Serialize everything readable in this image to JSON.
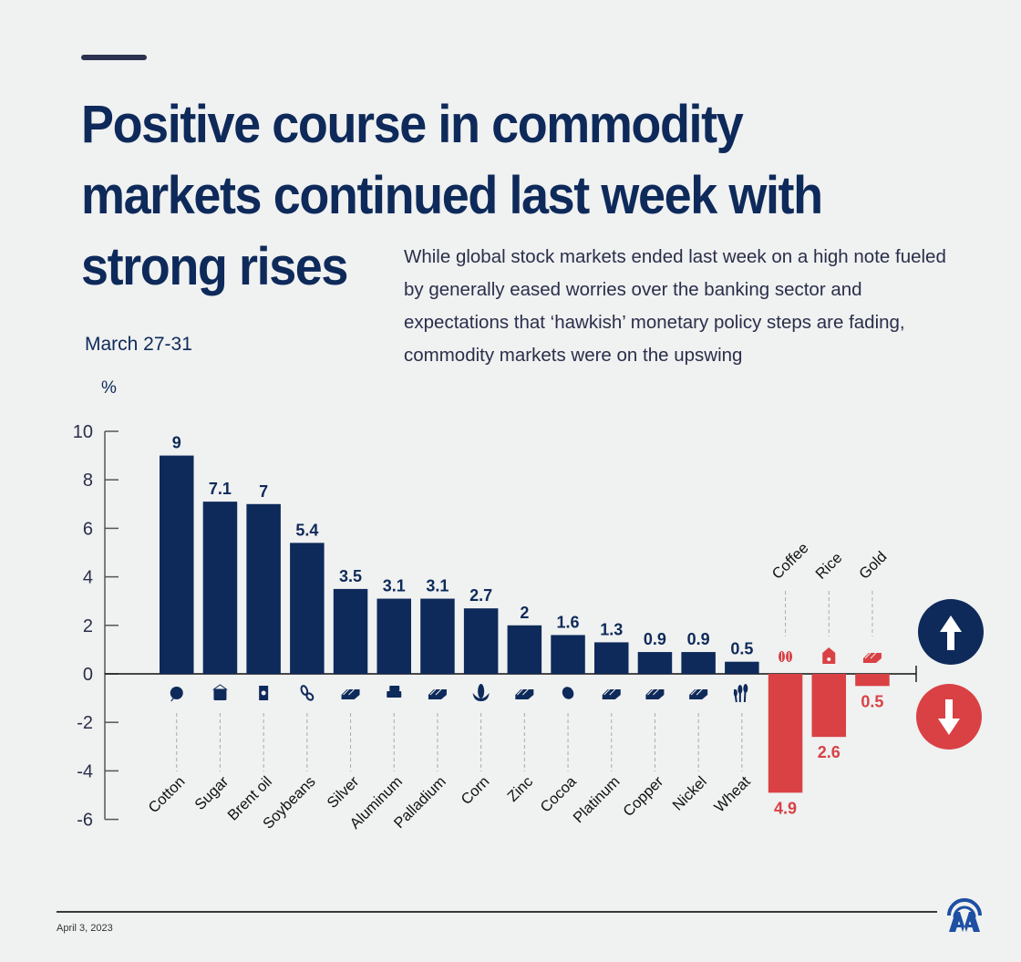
{
  "header": {
    "title_lines": [
      "Positive course in commodity",
      "markets continued last week with",
      "strong rises"
    ],
    "description": "While global stock markets ended last week on a high note fueled by generally eased worries over the banking sector and expectations that ‘hawkish’ monetary policy steps are fading, commodity markets were on the upswing",
    "period": "March 27-31"
  },
  "footer": {
    "date": "April 3, 2023",
    "logo": "aa-logo-icon"
  },
  "colors": {
    "positive": "#0e2a5a",
    "negative": "#d94145",
    "background": "#f0f1f1"
  },
  "legend": {
    "up": "arrow-up-icon",
    "down": "arrow-down-icon"
  },
  "chart_data": {
    "type": "bar",
    "title": "Positive course in commodity markets continued last week with strong rises",
    "subtitle": "March 27-31",
    "xlabel": "",
    "ylabel": "%",
    "ylim": [
      -6,
      10
    ],
    "yticks": [
      10,
      8,
      6,
      4,
      2,
      0,
      -2,
      -4,
      -6
    ],
    "grid": false,
    "categories": [
      "Cotton",
      "Sugar",
      "Brent oil",
      "Soybeans",
      "Silver",
      "Aluminum",
      "Palladium",
      "Corn",
      "Zinc",
      "Cocoa",
      "Platinum",
      "Copper",
      "Nickel",
      "Wheat",
      "Coffee",
      "Rice",
      "Gold"
    ],
    "values": [
      9,
      7.1,
      7,
      5.4,
      3.5,
      3.1,
      3.1,
      2.7,
      2,
      1.6,
      1.3,
      0.9,
      0.9,
      0.5,
      -4.9,
      -2.6,
      -0.5
    ],
    "data_labels": [
      "9",
      "7.1",
      "7",
      "5.4",
      "3.5",
      "3.1",
      "3.1",
      "2.7",
      "2",
      "1.6",
      "1.3",
      "0.9",
      "0.9",
      "0.5",
      "4.9",
      "2.6",
      "0.5"
    ],
    "icons": [
      "cotton-icon",
      "sugar-sack-icon",
      "oil-barrel-icon",
      "soybean-icon",
      "ingot-icon",
      "aluminum-icon",
      "ingot-icon",
      "corn-icon",
      "ingot-icon",
      "cocoa-icon",
      "ingot-icon",
      "ingot-icon",
      "ingot-icon",
      "wheat-icon",
      "coffee-bean-icon",
      "rice-bag-icon",
      "ingot-icon"
    ],
    "legend": [
      {
        "label": "Increase",
        "icon": "arrow-up-icon",
        "color": "#0e2a5a"
      },
      {
        "label": "Decrease",
        "icon": "arrow-down-icon",
        "color": "#d94145"
      }
    ]
  }
}
